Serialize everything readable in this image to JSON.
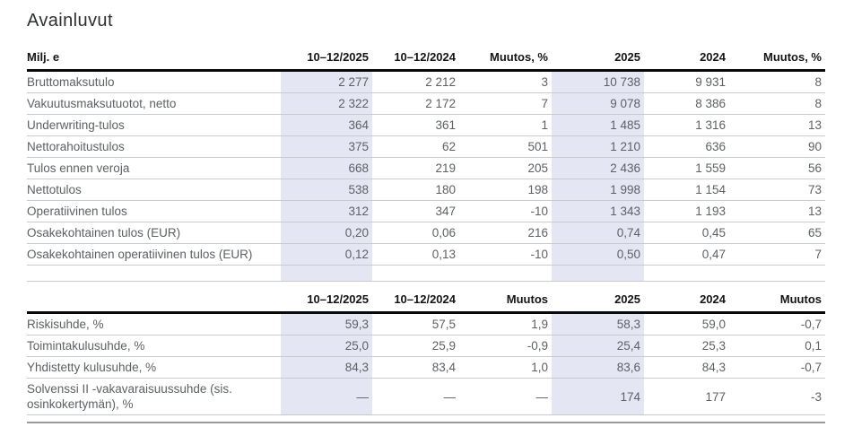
{
  "title": "Avainluvut",
  "colors": {
    "highlight": "#e4e7f3",
    "row_rule": "#c9cacc",
    "header_rule": "#0a0a0a",
    "bottom_rule": "#9b9b9b",
    "body_text": "#5d6065",
    "header_text": "#141414"
  },
  "tables": [
    {
      "name": "key-figures",
      "columns": [
        "Milj. e",
        "10–12/2025",
        "10–12/2024",
        "Muutos, %",
        "2025",
        "2024",
        "Muutos, %"
      ],
      "rows": [
        {
          "label": "Bruttomaksutulo",
          "values": [
            "2 277",
            "2 212",
            "3",
            "10 738",
            "9 931",
            "8"
          ]
        },
        {
          "label": "Vakuutusmaksutuotot, netto",
          "values": [
            "2 322",
            "2 172",
            "7",
            "9 078",
            "8 386",
            "8"
          ]
        },
        {
          "label": "Underwriting-tulos",
          "values": [
            "364",
            "361",
            "1",
            "1 485",
            "1 316",
            "13"
          ]
        },
        {
          "label": "Nettorahoitustulos",
          "values": [
            "375",
            "62",
            "501",
            "1 210",
            "636",
            "90"
          ]
        },
        {
          "label": "Tulos ennen veroja",
          "values": [
            "668",
            "219",
            "205",
            "2 436",
            "1 559",
            "56"
          ]
        },
        {
          "label": "Nettotulos",
          "values": [
            "538",
            "180",
            "198",
            "1 998",
            "1 154",
            "73"
          ]
        },
        {
          "label": "Operatiivinen tulos",
          "values": [
            "312",
            "347",
            "-10",
            "1 343",
            "1 193",
            "13"
          ]
        },
        {
          "label": "Osakekohtainen tulos (EUR)",
          "values": [
            "0,20",
            "0,06",
            "216",
            "0,74",
            "0,45",
            "65"
          ]
        },
        {
          "label": "Osakekohtainen operatiivinen tulos (EUR)",
          "values": [
            "0,12",
            "0,13",
            "-10",
            "0,50",
            "0,47",
            "7"
          ]
        }
      ]
    },
    {
      "name": "ratios",
      "columns": [
        "",
        "10–12/2025",
        "10–12/2024",
        "Muutos",
        "2025",
        "2024",
        "Muutos"
      ],
      "rows": [
        {
          "label": "Riskisuhde, %",
          "values": [
            "59,3",
            "57,5",
            "1,9",
            "58,3",
            "59,0",
            "-0,7"
          ]
        },
        {
          "label": "Toimintakulusuhde, %",
          "values": [
            "25,0",
            "25,9",
            "-0,9",
            "25,4",
            "25,3",
            "0,1"
          ]
        },
        {
          "label": "Yhdistetty kulusuhde, %",
          "values": [
            "84,3",
            "83,4",
            "1,0",
            "83,6",
            "84,3",
            "-0,7"
          ]
        },
        {
          "label": "Solvenssi II -vakavaraisuussuhde (sis. osinkokertymän), %",
          "values": [
            "—",
            "—",
            "—",
            "174",
            "177",
            "-3"
          ]
        }
      ]
    }
  ]
}
